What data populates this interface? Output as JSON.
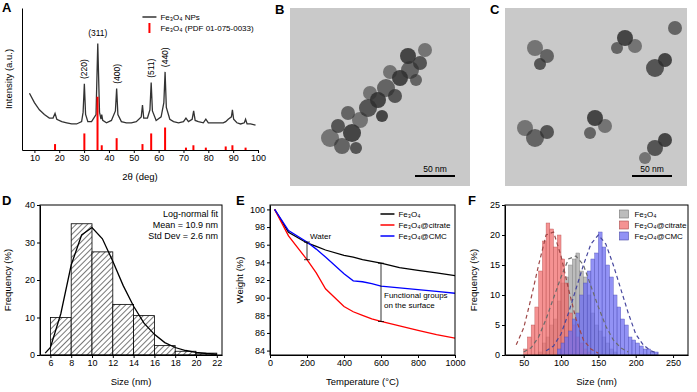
{
  "chart_data": [
    {
      "type": "line",
      "title": "A",
      "x_label": "2θ (deg)",
      "y_label": "Intensity (a.u.)",
      "xlim": [
        5,
        100
      ],
      "xticks": [
        10,
        20,
        30,
        40,
        50,
        60,
        70,
        80,
        90,
        100
      ],
      "ylim": [
        0,
        120
      ],
      "tick_labels": "x",
      "legend": "upper right",
      "series": [
        {
          "name": "Fe₃O₄ NPs",
          "type": "line",
          "color": "#333333",
          "x": [
            8,
            10,
            12,
            14,
            16,
            17.5,
            18.3,
            19,
            21,
            23,
            25,
            27,
            29,
            29.6,
            30.1,
            30.6,
            31.5,
            33,
            34.8,
            35.5,
            36.2,
            36.8,
            37.1,
            37.5,
            39,
            41,
            42.6,
            43.1,
            43.6,
            45,
            47,
            49,
            51,
            53,
            53.5,
            54,
            55.5,
            56.5,
            57,
            57.5,
            59,
            61,
            62.1,
            62.6,
            63.1,
            64.5,
            66,
            68,
            70,
            71,
            72,
            73.5,
            74.1,
            74.7,
            76,
            78,
            79,
            80,
            82,
            84,
            86,
            87,
            88,
            89.3,
            89.7,
            90.2,
            91.5,
            93,
            94.5,
            95,
            95.6,
            97,
            99
          ],
          "values": [
            48,
            40,
            34,
            30,
            27,
            27,
            31,
            26,
            24,
            23,
            22,
            22,
            24,
            32,
            56,
            30,
            24,
            24,
            30,
            90,
            32,
            26,
            30,
            25,
            23,
            25,
            33,
            52,
            30,
            24,
            23,
            23,
            24,
            28,
            38,
            27,
            27,
            34,
            57,
            33,
            25,
            28,
            40,
            66,
            36,
            26,
            24,
            23,
            24,
            27,
            24,
            26,
            33,
            25,
            24,
            23,
            26,
            23,
            23,
            23,
            23,
            24,
            26,
            28,
            34,
            26,
            23,
            22,
            23,
            26,
            22,
            22,
            21
          ]
        },
        {
          "name": "Fe₃O₄ (PDF 01-075-0033)",
          "type": "bar",
          "color": "#ff0000",
          "x": [
            18.3,
            30.1,
            35.4,
            37.1,
            43.1,
            53.5,
            57,
            62.6,
            71,
            74,
            79,
            87,
            89.7,
            95
          ],
          "values": [
            5,
            14,
            45,
            4,
            10,
            5,
            14,
            19,
            2,
            4,
            2,
            3,
            4,
            2
          ]
        }
      ],
      "annotations": [
        {
          "text": "(220)",
          "x": 30.1,
          "y": 60
        },
        {
          "text": "(311)",
          "x": 35.5,
          "y": 96
        },
        {
          "text": "(400)",
          "x": 43.1,
          "y": 56
        },
        {
          "text": "(511)",
          "x": 57,
          "y": 61
        },
        {
          "text": "(440)",
          "x": 62.6,
          "y": 70
        }
      ]
    },
    {
      "type": "image",
      "title": "B",
      "annotations": [
        {
          "text": "50 nm"
        }
      ]
    },
    {
      "type": "image",
      "title": "C",
      "annotations": [
        {
          "text": "50 nm"
        }
      ]
    },
    {
      "type": "histogram",
      "title": "D",
      "x_label": "Size (nm)",
      "y_label": "Frequency (%)",
      "xlim": [
        5,
        22.5
      ],
      "xticks": [
        6,
        8,
        10,
        12,
        14,
        16,
        18,
        20,
        22
      ],
      "ylim": [
        0,
        40
      ],
      "yticks": [
        0,
        10,
        20,
        30,
        40
      ],
      "bins": [
        6,
        8,
        10,
        12,
        14,
        16,
        18,
        20,
        22
      ],
      "series": [
        {
          "color": "#555555",
          "values": [
            10,
            35,
            27.5,
            13.5,
            10.5,
            2.5,
            1,
            0.5
          ]
        },
        {
          "type": "line",
          "color": "#000000",
          "x": [
            5.5,
            6,
            7,
            8,
            9,
            10,
            11,
            12,
            13,
            14,
            15,
            16,
            17,
            18,
            19,
            20,
            21,
            22
          ],
          "values": [
            0.5,
            2,
            11,
            24,
            32,
            34,
            31,
            25,
            18.5,
            13,
            8.5,
            5.5,
            3.3,
            2,
            1.2,
            0.7,
            0.4,
            0.2
          ]
        }
      ],
      "annotations": [
        {
          "text": "Log-normal fit"
        },
        {
          "text": "Mean = 10.9 nm"
        },
        {
          "text": "Std Dev = 2.6 nm"
        }
      ]
    },
    {
      "type": "line",
      "title": "E",
      "x_label": "Temperature (°C)",
      "y_label": "Weight (%)",
      "xlim": [
        0,
        1000
      ],
      "xticks": [
        0,
        200,
        400,
        600,
        800,
        1000
      ],
      "ylim": [
        83.5,
        100.5
      ],
      "yticks": [
        84,
        86,
        88,
        90,
        92,
        94,
        96,
        98,
        100
      ],
      "legend": "upper right",
      "x": [
        25,
        100,
        200,
        250,
        300,
        400,
        450,
        500,
        550,
        600,
        700,
        800,
        900,
        1000
      ],
      "series": [
        {
          "name": "Fe₃O₄",
          "color": "#000000",
          "values": [
            100,
            97.4,
            96.2,
            95.8,
            95.4,
            94.8,
            94.6,
            94.3,
            94.1,
            93.9,
            93.4,
            93.1,
            92.8,
            92.5
          ]
        },
        {
          "name": "Fe₃O₄@citrate",
          "color": "#ff0000",
          "values": [
            100,
            97,
            94.3,
            92.8,
            91,
            89,
            88.4,
            88,
            87.6,
            87.3,
            86.8,
            86.3,
            85.8,
            85.4
          ]
        },
        {
          "name": "Fe₃O₄@CMC",
          "color": "#0000ff",
          "values": [
            100,
            97.6,
            96.3,
            95.5,
            94.6,
            92.7,
            91.9,
            91.8,
            91.6,
            91.3,
            91.1,
            90.9,
            90.7,
            90.5
          ]
        }
      ],
      "annotations": [
        {
          "text": "Water",
          "x": 200
        },
        {
          "text": "Functional groups\non the surface",
          "x": 600
        }
      ]
    },
    {
      "type": "histogram",
      "title": "F",
      "x_label": "Size (nm)",
      "y_label": "Frequency (%)",
      "xlim": [
        25,
        270
      ],
      "xticks": [
        50,
        100,
        150,
        200,
        250
      ],
      "ylim": [
        0,
        25
      ],
      "yticks": [
        0,
        5,
        10,
        15,
        20,
        25
      ],
      "legend": "upper right",
      "bins": [
        40,
        45,
        50,
        55,
        60,
        65,
        70,
        75,
        80,
        85,
        90,
        95,
        100,
        105,
        110,
        115,
        120,
        125,
        130,
        135,
        140,
        145,
        150,
        155,
        160,
        165,
        170,
        175,
        180,
        185,
        190,
        195,
        200,
        205,
        210,
        215,
        220,
        225,
        230,
        235,
        240,
        245,
        250
      ],
      "series": [
        {
          "name": "Fe₃O₄",
          "color": "#a6a6a6",
          "values": [
            0,
            0,
            0,
            0,
            0,
            0,
            0.5,
            2,
            3,
            5,
            6,
            9,
            12,
            13,
            15,
            16,
            17,
            14,
            13,
            10,
            7,
            5,
            4,
            3,
            2,
            1,
            0.5,
            0,
            0,
            0,
            0,
            0,
            0,
            0,
            0,
            0,
            0,
            0,
            0,
            0,
            0,
            0
          ],
          "fit_x": [
            50,
            60,
            70,
            80,
            90,
            100,
            110,
            120,
            130,
            140,
            150,
            160,
            170,
            180,
            190
          ],
          "fit_values": [
            0.5,
            1.2,
            3,
            6,
            9.5,
            13,
            16,
            16.5,
            15,
            11.5,
            8,
            4.8,
            2.5,
            1.2,
            0.5
          ]
        },
        {
          "name": "Fe₃O₄@citrate",
          "color": "#f26d6d",
          "values": [
            0,
            0,
            1,
            3,
            5,
            8,
            14,
            19,
            22,
            21,
            18,
            20,
            16,
            12,
            7,
            5,
            3,
            2,
            1,
            0.5,
            0,
            0,
            0,
            0,
            0,
            0,
            0,
            0,
            0,
            0,
            0,
            0,
            0,
            0,
            0,
            0,
            0,
            0,
            0,
            0,
            0,
            0
          ],
          "fit_x": [
            40,
            50,
            60,
            70,
            80,
            90,
            100,
            110,
            120,
            130,
            140,
            150
          ],
          "fit_values": [
            1.7,
            4.5,
            9.5,
            15,
            20,
            20.5,
            16.5,
            11,
            6,
            2.5,
            1,
            0.3
          ]
        },
        {
          "name": "Fe₃O₄@CMC",
          "color": "#6d6df2",
          "values": [
            0,
            0,
            0,
            0,
            0,
            0,
            0,
            0,
            0,
            0,
            0,
            1,
            2,
            3,
            4,
            6,
            7,
            10,
            12,
            14,
            16,
            17,
            20.5,
            18,
            15,
            13,
            10,
            8,
            6,
            5,
            3,
            2.5,
            2,
            1.5,
            1,
            1,
            0.5,
            0.5,
            0,
            0,
            0,
            0
          ],
          "fit_x": [
            80,
            90,
            100,
            110,
            120,
            130,
            140,
            150,
            160,
            170,
            180,
            190,
            200,
            210,
            220,
            230
          ],
          "fit_values": [
            0.7,
            1.5,
            3.5,
            7,
            11,
            15,
            18.5,
            20,
            18.5,
            15,
            11,
            7,
            3.5,
            1.7,
            0.7,
            0.3
          ]
        }
      ]
    }
  ]
}
